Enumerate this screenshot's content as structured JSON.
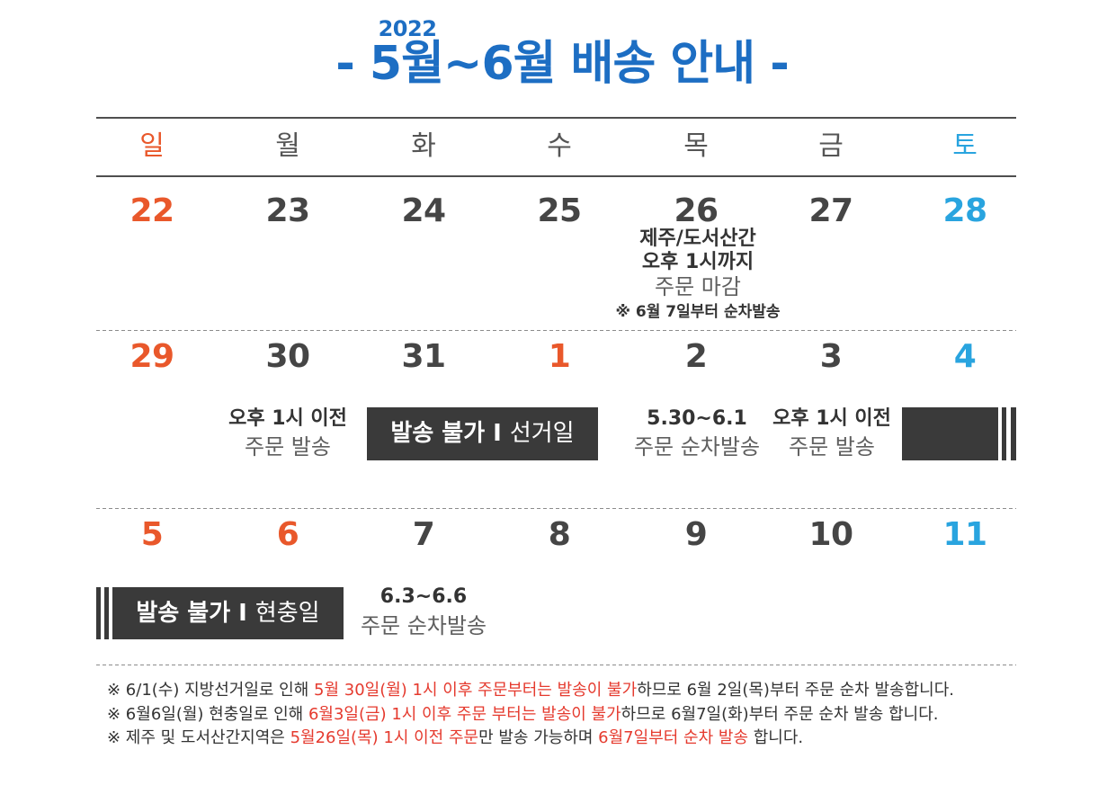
{
  "header": {
    "year": "2022",
    "title": "- 5월~6월 배송 안내 -"
  },
  "colors": {
    "title": "#1d6ec3",
    "highlight": "#e53a2e",
    "block": "#3a3a3a"
  },
  "calendar": {
    "weekdays": [
      {
        "label": "일",
        "color": "#e9582b"
      },
      {
        "label": "월",
        "color": "#555555"
      },
      {
        "label": "화",
        "color": "#555555"
      },
      {
        "label": "수",
        "color": "#555555"
      },
      {
        "label": "목",
        "color": "#555555"
      },
      {
        "label": "금",
        "color": "#555555"
      },
      {
        "label": "토",
        "color": "#29a4df"
      }
    ],
    "weeks": [
      {
        "days": [
          {
            "num": "22",
            "color": "#e9582b"
          },
          {
            "num": "23",
            "color": "#454545"
          },
          {
            "num": "24",
            "color": "#454545"
          },
          {
            "num": "25",
            "color": "#454545"
          },
          {
            "num": "26",
            "color": "#454545"
          },
          {
            "num": "27",
            "color": "#454545"
          },
          {
            "num": "28",
            "color": "#29a4df"
          }
        ]
      },
      {
        "days": [
          {
            "num": "29",
            "color": "#e9582b"
          },
          {
            "num": "30",
            "color": "#454545"
          },
          {
            "num": "31",
            "color": "#454545"
          },
          {
            "num": "1",
            "color": "#e9582b"
          },
          {
            "num": "2",
            "color": "#454545"
          },
          {
            "num": "3",
            "color": "#454545"
          },
          {
            "num": "4",
            "color": "#29a4df"
          }
        ]
      },
      {
        "days": [
          {
            "num": "5",
            "color": "#e9582b"
          },
          {
            "num": "6",
            "color": "#e9582b"
          },
          {
            "num": "7",
            "color": "#454545"
          },
          {
            "num": "8",
            "color": "#454545"
          },
          {
            "num": "9",
            "color": "#454545"
          },
          {
            "num": "10",
            "color": "#454545"
          },
          {
            "num": "11",
            "color": "#29a4df"
          }
        ]
      }
    ]
  },
  "schedule": {
    "may26_cutoff": {
      "region": "제주/도서산간",
      "time": "오후 1시까지",
      "action": "주문 마감",
      "note": "※ 6월 7일부터 순차발송"
    },
    "may30": {
      "time": "오후 1시 이전",
      "action": "주문 발송"
    },
    "election_block": {
      "label": "발송 불가",
      "separator": "I",
      "reason": "선거일"
    },
    "jun2": {
      "range": "5.30~6.1",
      "action": "주문 순차발송"
    },
    "jun3": {
      "time": "오후 1시 이전",
      "action": "주문 발송"
    },
    "memorial_block": {
      "label": "발송 불가",
      "separator": "I",
      "reason": "현충일"
    },
    "jun7": {
      "range": "6.3~6.6",
      "action": "주문 순차발송"
    }
  },
  "footnotes": [
    {
      "before": "※ 6/1(수) 지방선거일로 인해 ",
      "highlight": "5월 30일(월) 1시 이후 주문부터는 발송이 불가",
      "after": "하므로 6월 2일(목)부터 주문 순차 발송합니다."
    },
    {
      "before": "※ 6월6일(월) 현충일로 인해 ",
      "highlight": "6월3일(금) 1시 이후 주문 부터는 발송이 불가",
      "after": "하므로 6월7일(화)부터 주문 순차 발송 합니다."
    },
    {
      "before": "※ 제주 및 도서산간지역은 ",
      "highlight": "5월26일(목) 1시 이전 주문",
      "middle": "만 발송 가능하며 ",
      "highlight2": "6월7일부터 순차 발송",
      "after": " 합니다."
    }
  ]
}
